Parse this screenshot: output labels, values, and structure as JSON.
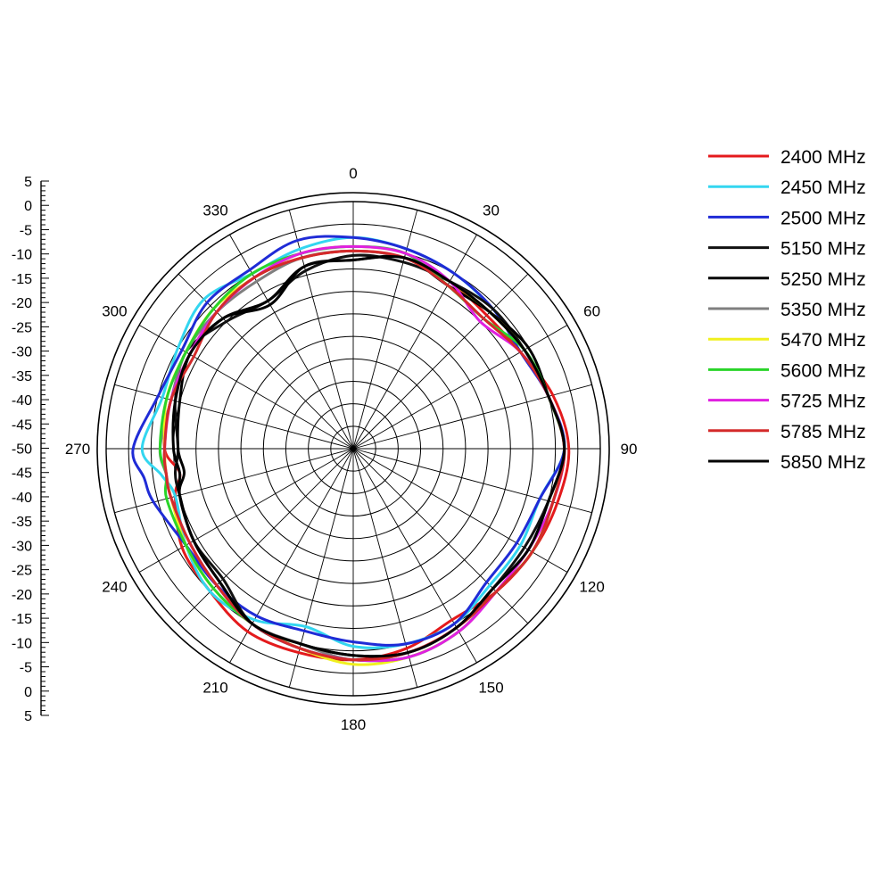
{
  "chart_data": {
    "type": "polar-line",
    "title": "",
    "radial_axis": {
      "min": -50,
      "max": 5,
      "ring_step": 5,
      "tick_labels": [
        "5",
        "0",
        "-5",
        "-10",
        "-15",
        "-20",
        "-25",
        "-30",
        "-35",
        "-40",
        "-45",
        "-50",
        "-45",
        "-40",
        "-35",
        "-30",
        "-25",
        "-20",
        "-15",
        "-10",
        "-5",
        "0",
        "5"
      ]
    },
    "angle_axis": {
      "direction": "clockwise",
      "zero_position": "top",
      "tick_labels": [
        "0",
        "30",
        "60",
        "90",
        "120",
        "150",
        "180",
        "210",
        "240",
        "270",
        "300",
        "330"
      ]
    },
    "grid": true,
    "legend_position": "right",
    "series_angles": [
      0,
      15,
      30,
      45,
      60,
      75,
      90,
      105,
      120,
      135,
      150,
      165,
      180,
      195,
      210,
      225,
      240,
      255,
      262,
      270,
      285,
      300,
      315,
      330,
      345
    ],
    "series": [
      {
        "name": "2400 MHz",
        "color": "#e41a1c",
        "values": [
          -6,
          -6,
          -7,
          -8,
          -7,
          -4,
          -2,
          -3,
          -4,
          -5,
          -6,
          -4,
          -3,
          -3,
          -3,
          -5,
          -6,
          -9,
          -11,
          -8,
          -8,
          -8,
          -7,
          -6,
          -6
        ]
      },
      {
        "name": "2450 MHz",
        "color": "#33d6f0",
        "values": [
          -3,
          -4,
          -5,
          -6,
          -6,
          -5,
          -3,
          -7,
          -7,
          -7,
          -5,
          -5,
          -6,
          -9,
          -6,
          -5,
          -7,
          -9,
          -7,
          -3,
          -6,
          -5,
          -3,
          -5,
          -4
        ]
      },
      {
        "name": "2500 MHz",
        "color": "#1f2bd6",
        "values": [
          -3,
          -4,
          -5,
          -6,
          -7,
          -5,
          -3,
          -7,
          -8,
          -8,
          -5,
          -5,
          -7,
          -8,
          -7,
          -7,
          -7,
          -4,
          -3,
          -1,
          -5,
          -6,
          -4,
          -4,
          -2
        ]
      },
      {
        "name": "5150 MHz",
        "color": "#111111",
        "values": [
          -7,
          -7,
          -7,
          -6,
          -6,
          -5,
          -3,
          -5,
          -6,
          -6,
          -4,
          -3,
          -4,
          -5,
          -5,
          -9,
          -9,
          -10,
          -10,
          -11,
          -9,
          -7,
          -10,
          -12,
          -9
        ]
      },
      {
        "name": "5250 MHz",
        "color": "#000000",
        "values": [
          -8,
          -6,
          -8,
          -7,
          -5,
          -5,
          -3,
          -5,
          -5,
          -6,
          -4,
          -3,
          -3,
          -4,
          -5,
          -8,
          -9,
          -10,
          -12,
          -11,
          -10,
          -8,
          -9,
          -13,
          -8
        ]
      },
      {
        "name": "5350 MHz",
        "color": "#7f7f7f",
        "values": [
          -6,
          -6,
          -7,
          -7,
          -6,
          -5,
          -3,
          -5,
          -5,
          -6,
          -4,
          -3,
          -3,
          -5,
          -5,
          -7,
          -8,
          -8,
          -8,
          -7,
          -8,
          -7,
          -7,
          -7,
          -6
        ]
      },
      {
        "name": "5470 MHz",
        "color": "#f0f01e",
        "values": [
          -5,
          -5,
          -7,
          -7,
          -6,
          -5,
          -3,
          -4,
          -4,
          -5,
          -3,
          -2,
          -2,
          -4,
          -5,
          -6,
          -7,
          -8,
          -8,
          -8,
          -7,
          -7,
          -6,
          -6,
          -5
        ]
      },
      {
        "name": "5600 MHz",
        "color": "#2ad42a",
        "values": [
          -5,
          -5,
          -8,
          -9,
          -6,
          -5,
          -3,
          -4,
          -4,
          -5,
          -3,
          -2,
          -3,
          -4,
          -5,
          -6,
          -7,
          -7,
          -8,
          -7,
          -7,
          -7,
          -6,
          -5,
          -5
        ]
      },
      {
        "name": "5725 MHz",
        "color": "#e020e0",
        "values": [
          -5,
          -5,
          -7,
          -10,
          -7,
          -5,
          -3,
          -4,
          -5,
          -5,
          -3,
          -2,
          -3,
          -4,
          -5,
          -7,
          -8,
          -8,
          -8,
          -8,
          -8,
          -8,
          -7,
          -6,
          -5
        ]
      },
      {
        "name": "5785 MHz",
        "color": "#d42a2a",
        "values": [
          -6,
          -6,
          -8,
          -9,
          -7,
          -5,
          -3,
          -4,
          -4,
          -5,
          -4,
          -3,
          -3,
          -4,
          -5,
          -7,
          -8,
          -8,
          -8,
          -8,
          -8,
          -9,
          -7,
          -6,
          -6
        ]
      },
      {
        "name": "5850 MHz",
        "color": "#000000",
        "values": [
          -8,
          -6,
          -7,
          -7,
          -6,
          -5,
          -3,
          -5,
          -5,
          -6,
          -4,
          -3,
          -4,
          -5,
          -5,
          -8,
          -9,
          -10,
          -11,
          -10,
          -9,
          -8,
          -9,
          -12,
          -8
        ]
      }
    ]
  }
}
